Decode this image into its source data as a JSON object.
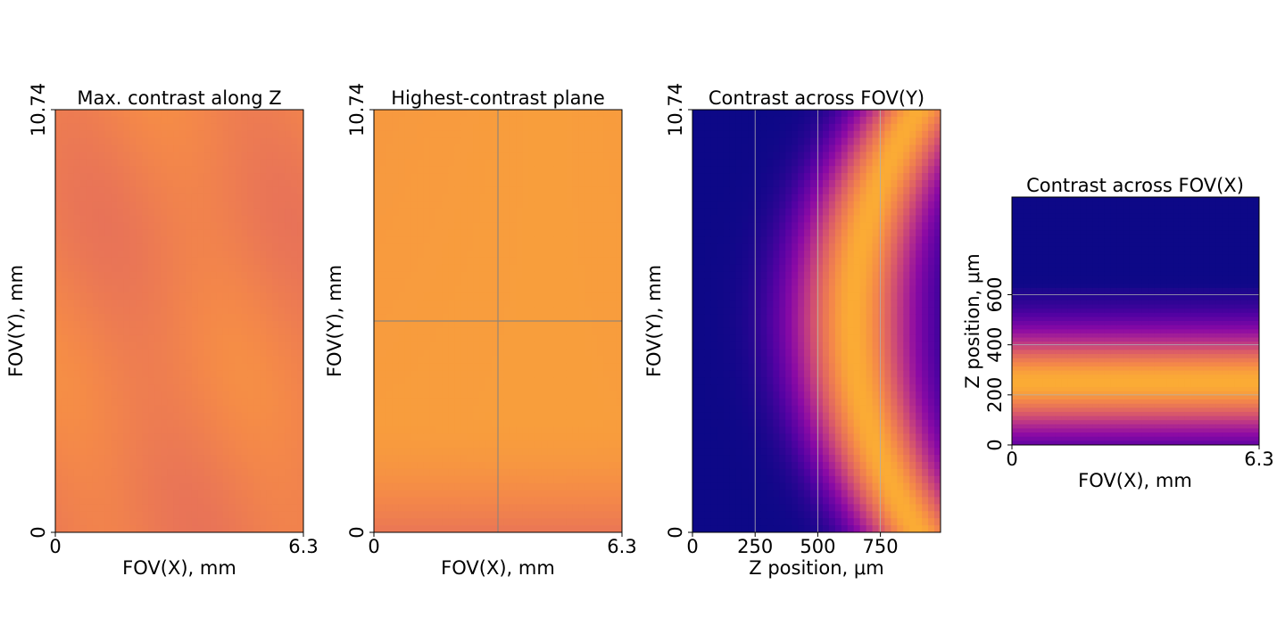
{
  "chart_data": [
    {
      "type": "heatmap",
      "title": "Max. contrast along Z",
      "xlabel": "FOV(X), mm",
      "ylabel": "FOV(Y), mm",
      "xlim": [
        0,
        6.3
      ],
      "ylim": [
        0,
        10.74
      ],
      "xticks": [
        {
          "value": 0,
          "label": "0"
        },
        {
          "value": 6.3,
          "label": "6.3"
        }
      ],
      "yticks": [
        {
          "value": 0,
          "label": "0"
        },
        {
          "value": 10.74,
          "label": "10.74"
        }
      ],
      "grid": false,
      "colormap": "plasma",
      "field": "max_contrast",
      "range": [
        0.84,
        0.88
      ],
      "overlay_lines": []
    },
    {
      "type": "heatmap",
      "title": "Highest-contrast plane",
      "xlabel": "FOV(X), mm",
      "ylabel": "FOV(Y), mm",
      "xlim": [
        0,
        6.3
      ],
      "ylim": [
        0,
        10.74
      ],
      "xticks": [
        {
          "value": 0,
          "label": "0"
        },
        {
          "value": 6.3,
          "label": "6.3"
        }
      ],
      "yticks": [
        {
          "value": 0,
          "label": "0"
        },
        {
          "value": 10.74,
          "label": "10.74"
        }
      ],
      "grid": false,
      "colormap": "plasma",
      "field": "best_plane",
      "range": [
        0.72,
        0.88
      ],
      "overlay_lines": [
        {
          "orientation": "vertical",
          "value": 3.15,
          "color": "#808080"
        },
        {
          "orientation": "horizontal",
          "value": 5.37,
          "color": "#808080"
        }
      ]
    },
    {
      "type": "heatmap",
      "title": "Contrast across FOV(Y)",
      "xlabel": "Z position, μm",
      "ylabel": "FOV(Y), mm",
      "xlim": [
        0,
        990
      ],
      "ylim": [
        0,
        10.74
      ],
      "xticks": [
        {
          "value": 0,
          "label": "0"
        },
        {
          "value": 250,
          "label": "250"
        },
        {
          "value": 500,
          "label": "500"
        },
        {
          "value": 750,
          "label": "750"
        }
      ],
      "yticks": [
        {
          "value": 0,
          "label": "0"
        },
        {
          "value": 10.74,
          "label": "10.74"
        }
      ],
      "grid": true,
      "grid_axis": "x",
      "colormap": "plasma",
      "field": "z_vs_fovy",
      "range": [
        0,
        0.88
      ],
      "overlay_lines": []
    },
    {
      "type": "heatmap",
      "title": "Contrast across FOV(X)",
      "xlabel": "FOV(X), mm",
      "ylabel": "Z position, μm",
      "xlim": [
        0,
        6.3
      ],
      "ylim": [
        0,
        990
      ],
      "xticks": [
        {
          "value": 0,
          "label": "0"
        },
        {
          "value": 6.3,
          "label": "6.3"
        }
      ],
      "yticks": [
        {
          "value": 0,
          "label": "0"
        },
        {
          "value": 200,
          "label": "200"
        },
        {
          "value": 400,
          "label": "400"
        },
        {
          "value": 600,
          "label": "600"
        }
      ],
      "grid": true,
      "grid_axis": "y",
      "colormap": "plasma",
      "field": "fovx_vs_z",
      "range": [
        0,
        0.88
      ],
      "overlay_lines": []
    }
  ]
}
